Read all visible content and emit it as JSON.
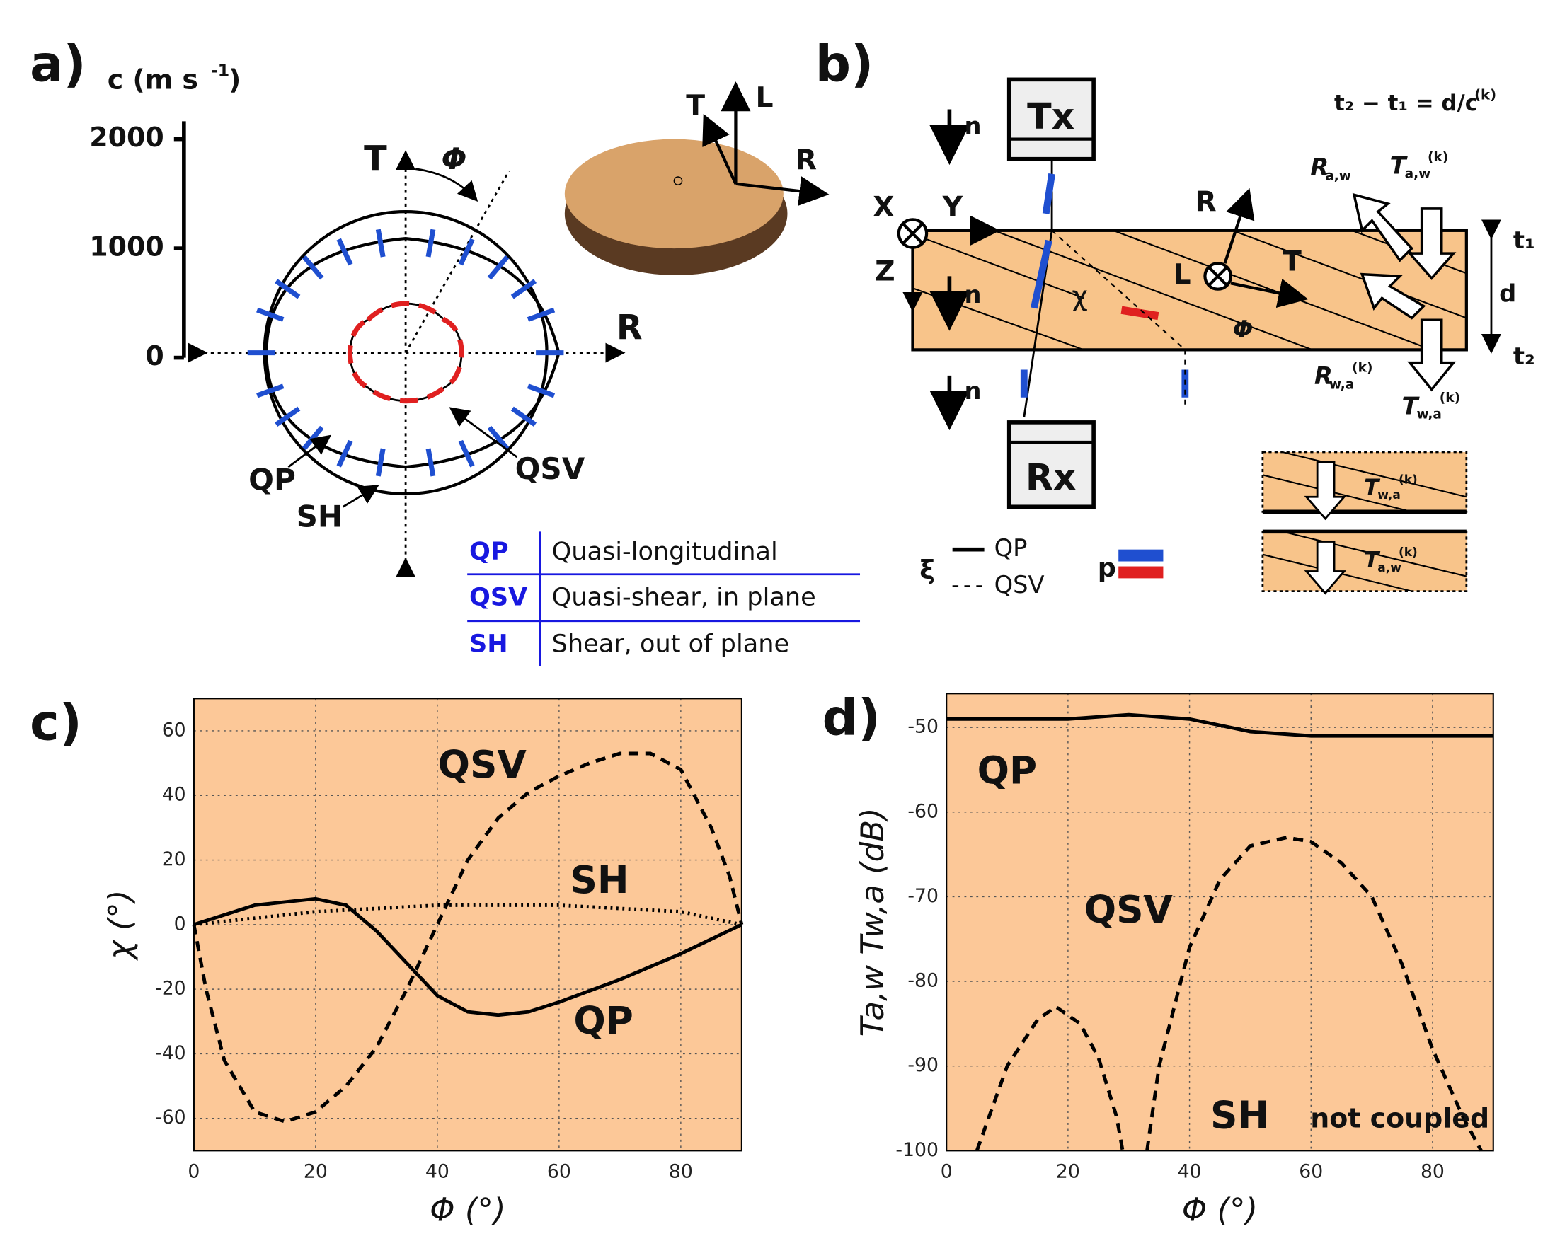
{
  "panel_a": {
    "label": "a)",
    "axis_label": "c (m s",
    "axis_label_sup": "-1",
    "axis_label_end": ")",
    "yticks": [
      0,
      1000,
      2000
    ],
    "axes": {
      "t": "T",
      "phi": "Φ",
      "r": "R"
    },
    "log_axes": {
      "t": "T",
      "l": "L",
      "r": "R"
    },
    "curve_labels": {
      "qp": "QP",
      "sh": "SH",
      "qsv": "QSV"
    },
    "legend_table": [
      [
        "QP",
        "Quasi-longitudinal"
      ],
      [
        "QSV",
        "Quasi-shear, in plane"
      ],
      [
        "SH",
        "Shear, out of plane"
      ]
    ]
  },
  "panel_b": {
    "label": "b)",
    "tx": "Tx",
    "rx": "Rx",
    "n": [
      "n",
      "n",
      "n"
    ],
    "x": "X",
    "y": "Y",
    "z": "Z",
    "r": "R",
    "l": "L",
    "t": "T",
    "chi": "χ",
    "phi": "Φ",
    "equation": "t₂ − t₁ = d/c",
    "equation_sup": "(k)",
    "r_aw": {
      "main": "R",
      "sub": "a,w"
    },
    "t_aw": {
      "main": "T",
      "sub": "a,w",
      "sup": "(k)"
    },
    "r_wa": {
      "main": "R",
      "sub": "w,a",
      "sup": "(k)"
    },
    "t_wa": {
      "main": "T",
      "sub": "w,a",
      "sup": "(k)"
    },
    "t1": "t₁",
    "d": "d",
    "t2": "t₂",
    "legend": {
      "xi": "ξ",
      "qp": "QP",
      "qsv": "QSV",
      "p": "p"
    },
    "inset_top": {
      "main": "T",
      "sub": "w,a",
      "sup": "(k)"
    },
    "inset_bottom": {
      "main": "T",
      "sub": "a,w",
      "sup": "(k)"
    }
  },
  "chart_data": [
    {
      "type": "line",
      "label": "c)",
      "xlabel": "Φ (°)",
      "ylabel": "χ (°)",
      "background": "#fcc898",
      "grid": true,
      "xlim": [
        0,
        90
      ],
      "ylim": [
        -70,
        70
      ],
      "xticks": [
        0,
        20,
        40,
        60,
        80
      ],
      "yticks": [
        -60,
        -40,
        -20,
        0,
        20,
        40,
        60
      ],
      "annotations": [
        "QSV",
        "SH",
        "QP"
      ],
      "series": [
        {
          "name": "QP",
          "color": "#000000",
          "dash": "solid",
          "x": [
            0,
            10,
            20,
            25,
            30,
            35,
            40,
            45,
            50,
            55,
            60,
            70,
            80,
            90
          ],
          "values": [
            0,
            6,
            8,
            6,
            -2,
            -12,
            -22,
            -27,
            -28,
            -27,
            -24,
            -17,
            -9,
            0
          ]
        },
        {
          "name": "QSV",
          "color": "#000000",
          "dash": "dashed",
          "x": [
            0,
            2,
            5,
            10,
            15,
            20,
            25,
            30,
            35,
            40,
            45,
            50,
            55,
            60,
            65,
            70,
            75,
            80,
            85,
            88,
            90
          ],
          "values": [
            0,
            -20,
            -42,
            -58,
            -61,
            -58,
            -50,
            -38,
            -20,
            0,
            20,
            33,
            41,
            46,
            50,
            53,
            53,
            48,
            30,
            15,
            0
          ]
        },
        {
          "name": "SH",
          "color": "#000000",
          "dash": "dotted",
          "x": [
            0,
            20,
            40,
            60,
            80,
            90
          ],
          "values": [
            0,
            4,
            6,
            6,
            4,
            0
          ]
        }
      ]
    },
    {
      "type": "line",
      "label": "d)",
      "xlabel": "Φ (°)",
      "ylabel": "Ta,w Tw,a (dB)",
      "background": "#fcc898",
      "grid": true,
      "xlim": [
        0,
        90
      ],
      "ylim": [
        -100,
        -46
      ],
      "xticks": [
        0,
        20,
        40,
        60,
        80
      ],
      "yticks": [
        -100,
        -90,
        -80,
        -70,
        -60,
        -50
      ],
      "annotations": [
        "QP",
        "QSV",
        "SH",
        "not coupled"
      ],
      "series": [
        {
          "name": "QP",
          "color": "#000000",
          "dash": "solid",
          "x": [
            0,
            20,
            30,
            40,
            50,
            60,
            90
          ],
          "values": [
            -49,
            -49,
            -48.5,
            -49,
            -50.5,
            -51,
            -51
          ]
        },
        {
          "name": "QSV",
          "color": "#000000",
          "dash": "dashed",
          "x": [
            5,
            10,
            15,
            18,
            22,
            25,
            28,
            29,
            31,
            33,
            35,
            40,
            45,
            50,
            56,
            60,
            65,
            70,
            75,
            80,
            85,
            88
          ],
          "values": [
            -100,
            -90,
            -84.5,
            -83,
            -85,
            -89,
            -96,
            -100,
            null,
            -100,
            -90,
            -76,
            -68,
            -64,
            -63,
            -63.5,
            -66,
            -70,
            -78,
            -88,
            -96,
            -100
          ]
        }
      ]
    }
  ]
}
